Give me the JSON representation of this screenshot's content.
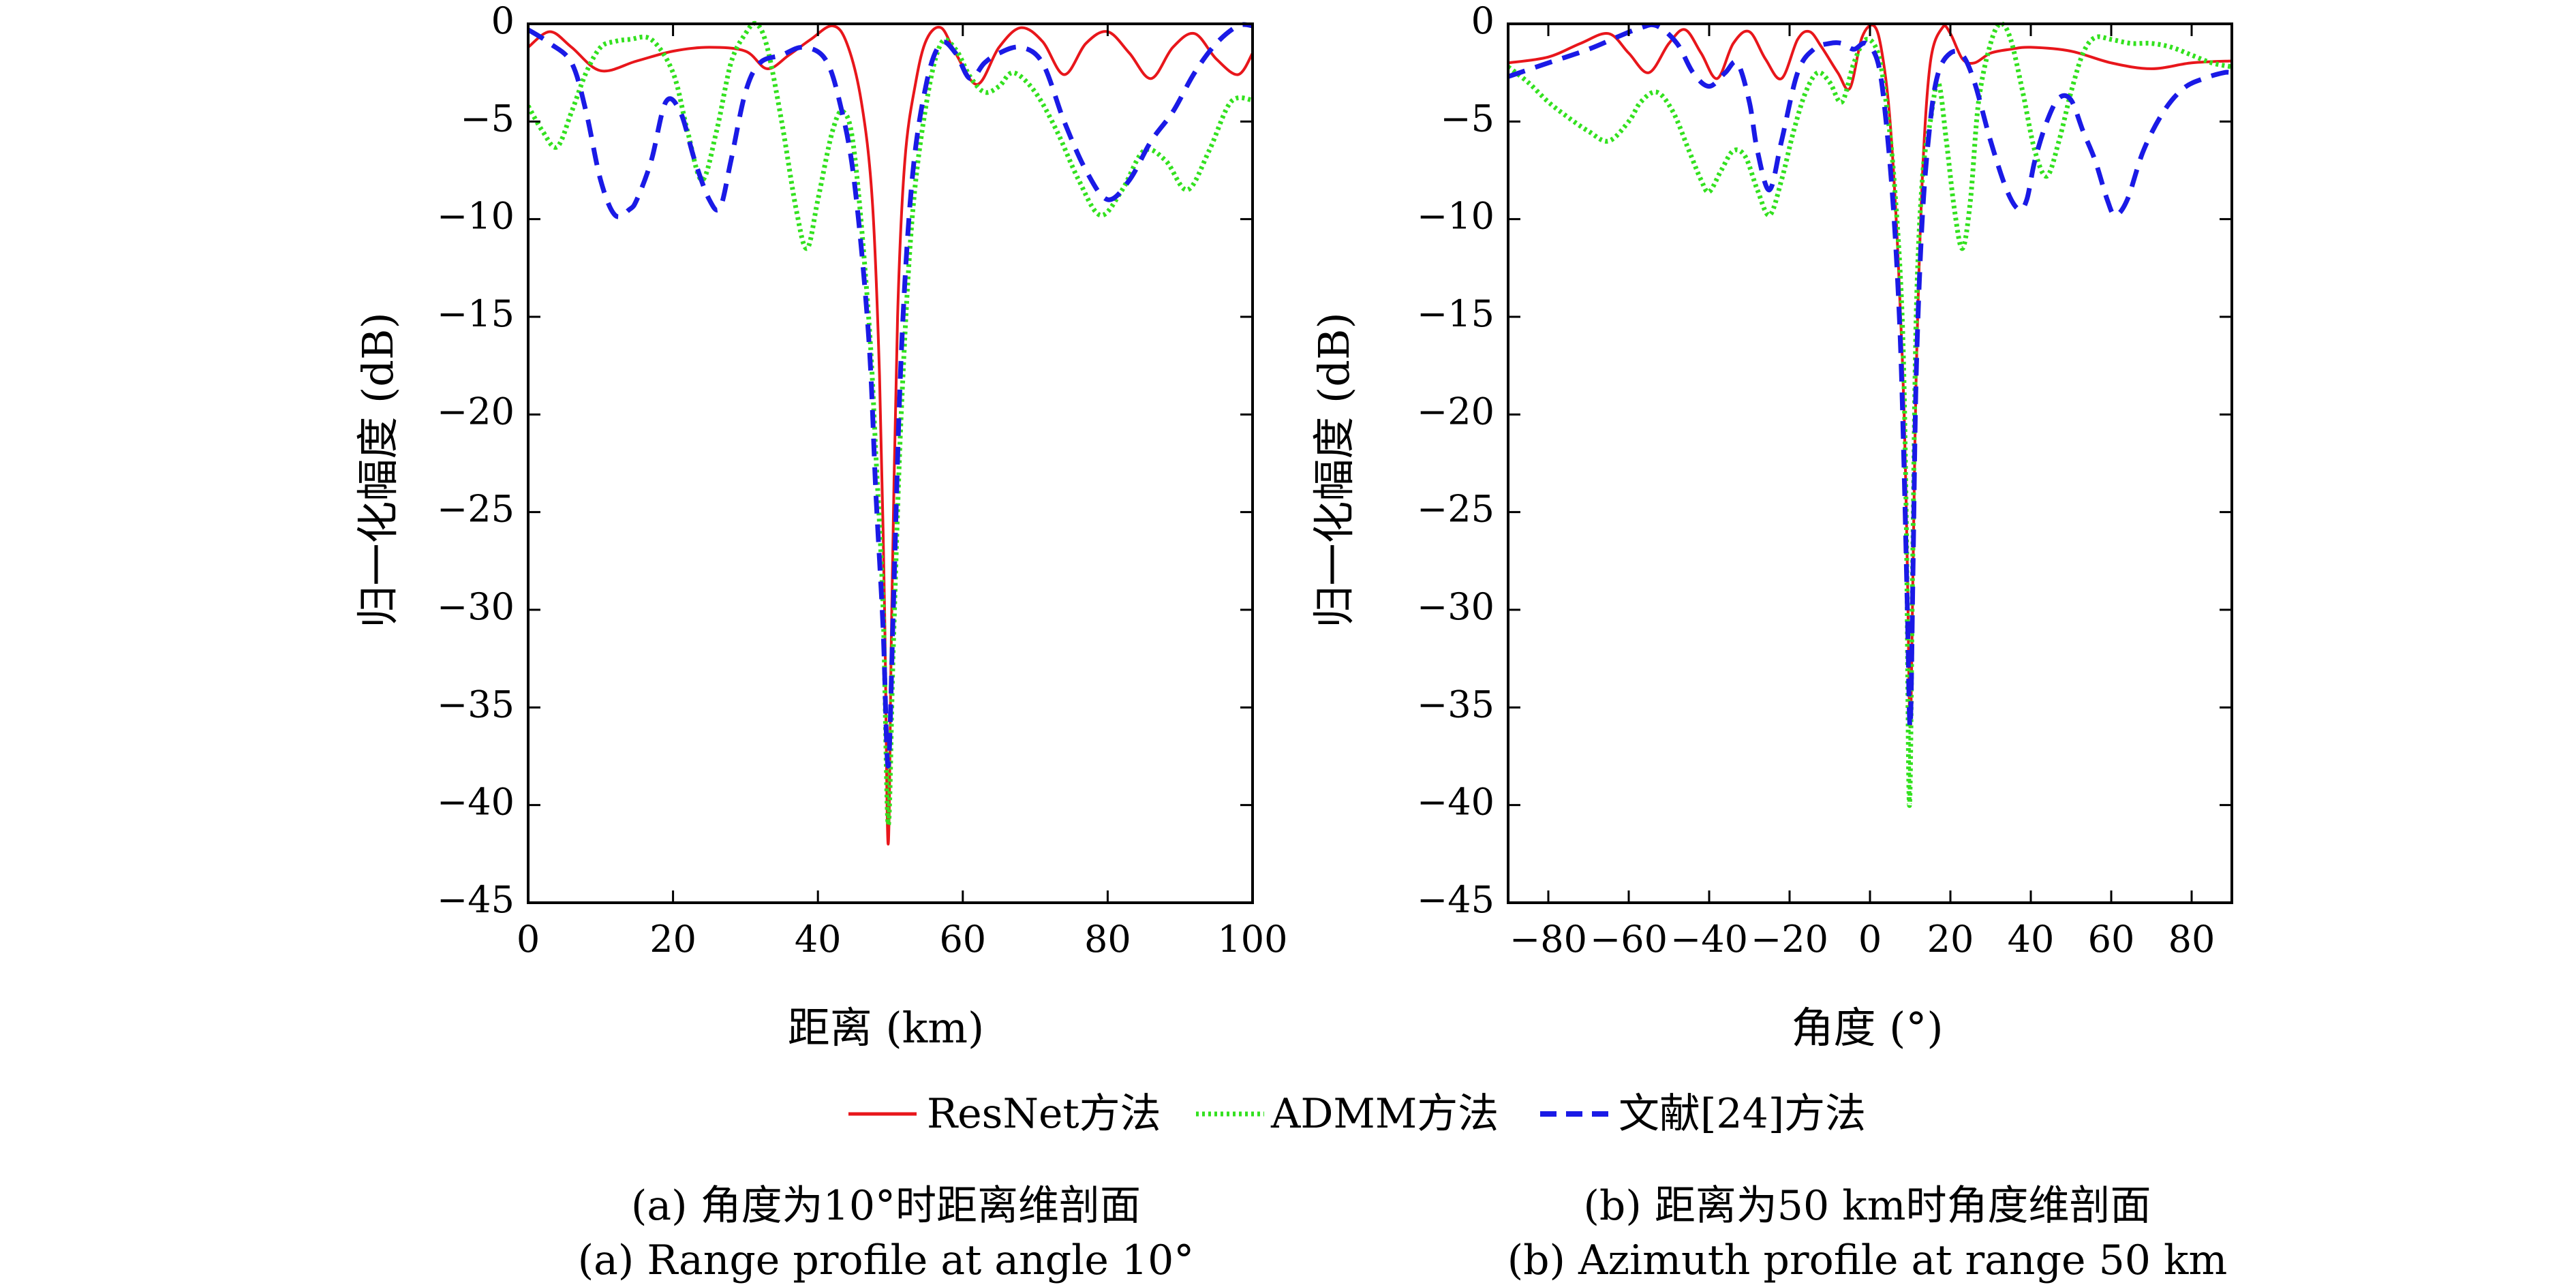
{
  "colors": {
    "resnet": "#e8161b",
    "admm": "#33e11f",
    "ref24": "#1a1ae6",
    "axis": "#000000"
  },
  "legend": [
    {
      "label": "ResNet方法",
      "series": "resnet",
      "style": "solid"
    },
    {
      "label": "ADMM方法",
      "series": "admm",
      "style": "dotted"
    },
    {
      "label": "文献[24]方法",
      "series": "ref24",
      "style": "dashed"
    }
  ],
  "captions": {
    "a_cn": "(a) 角度为10°时距离维剖面",
    "a_en": "(a) Range profile at angle 10°",
    "b_cn": "(b) 距离为50 km时角度维剖面",
    "b_en": "(b) Azimuth profile at range 50 km"
  },
  "chart_data": [
    {
      "type": "line",
      "xlabel": "距离 (km)",
      "ylabel": "归一化幅度 (dB)",
      "xlim": [
        0,
        100
      ],
      "ylim": [
        -45,
        0
      ],
      "xticks": [
        0,
        20,
        40,
        60,
        80,
        100
      ],
      "yticks": [
        0,
        -5,
        -10,
        -15,
        -20,
        -25,
        -30,
        -35,
        -40,
        -45
      ],
      "grid": false,
      "series": [
        {
          "name": "ResNet方法",
          "key": "resnet",
          "x": [
            0,
            3,
            6,
            10,
            15,
            20,
            25,
            30,
            33,
            36,
            39,
            42,
            44,
            46,
            47.5,
            48.5,
            49.2,
            49.7,
            50.2,
            51,
            52,
            53.5,
            55,
            57,
            59,
            62,
            65,
            68,
            71,
            74,
            77,
            80,
            83,
            86,
            89,
            92,
            95,
            98,
            100
          ],
          "y": [
            -1.2,
            -0.4,
            -1.2,
            -2.4,
            -1.9,
            -1.4,
            -1.2,
            -1.4,
            -2.3,
            -1.6,
            -0.8,
            -0.1,
            -1.0,
            -4.0,
            -9.0,
            -18.0,
            -30.0,
            -42.0,
            -30.0,
            -15.0,
            -7.0,
            -3.0,
            -0.8,
            -0.2,
            -1.5,
            -3.1,
            -1.2,
            -0.2,
            -0.9,
            -2.6,
            -1.0,
            -0.4,
            -1.5,
            -2.8,
            -1.2,
            -0.5,
            -1.8,
            -2.6,
            -1.5
          ]
        },
        {
          "name": "ADMM方法",
          "key": "admm",
          "x": [
            0,
            2,
            4,
            6,
            8,
            10,
            12,
            14,
            17,
            20,
            22,
            24,
            26,
            28,
            30,
            31.5,
            33,
            35,
            37,
            38.5,
            40,
            42,
            43.5,
            45,
            47,
            48,
            49,
            49.7,
            50.4,
            51.5,
            53,
            55,
            57,
            59,
            61,
            63,
            65,
            67,
            70,
            73,
            76,
            79,
            82,
            85,
            88,
            91,
            94,
            97,
            100
          ],
          "y": [
            -4.2,
            -5.5,
            -6.3,
            -4.5,
            -2.5,
            -1.2,
            -0.9,
            -0.8,
            -0.8,
            -2.5,
            -5.5,
            -8.0,
            -5.5,
            -2.0,
            -0.5,
            0,
            -1.2,
            -5.0,
            -9.5,
            -11.5,
            -9.0,
            -5.5,
            -4.5,
            -6.5,
            -15.0,
            -22.0,
            -30.0,
            -41.0,
            -32.0,
            -20.0,
            -10.0,
            -4.0,
            -1.0,
            -1.3,
            -2.7,
            -3.5,
            -3.2,
            -2.5,
            -3.5,
            -5.5,
            -8.0,
            -9.8,
            -8.5,
            -6.5,
            -7.0,
            -8.5,
            -6.5,
            -4.0,
            -3.9
          ]
        },
        {
          "name": "文献[24]方法",
          "key": "ref24",
          "x": [
            0,
            3,
            6,
            8,
            10,
            12,
            14,
            15,
            17,
            19,
            21,
            23,
            25,
            26.5,
            28,
            30,
            32,
            35,
            38,
            41,
            43,
            45,
            47,
            48,
            49,
            49.7,
            50.4,
            51.5,
            53,
            55,
            57,
            59,
            61,
            63,
            65,
            68,
            71,
            74,
            77,
            80,
            83,
            86,
            89,
            92,
            95,
            98,
            100
          ],
          "y": [
            -0.3,
            -1.0,
            -2.0,
            -4.5,
            -8.0,
            -9.8,
            -9.5,
            -9.0,
            -7.0,
            -4.0,
            -4.5,
            -7.0,
            -9.0,
            -9.4,
            -7.0,
            -3.5,
            -2.0,
            -1.6,
            -1.2,
            -1.8,
            -4.0,
            -8.0,
            -16.0,
            -24.0,
            -31.0,
            -38.0,
            -30.0,
            -17.0,
            -8.0,
            -3.0,
            -1.0,
            -1.5,
            -2.8,
            -2.0,
            -1.5,
            -1.2,
            -2.0,
            -5.0,
            -7.5,
            -9.0,
            -8.0,
            -6.0,
            -4.5,
            -2.5,
            -1.0,
            -0.1,
            -0.1
          ]
        }
      ]
    },
    {
      "type": "line",
      "xlabel": "角度 (°)",
      "ylabel": "归一化幅度 (dB)",
      "xlim": [
        -90,
        90
      ],
      "ylim": [
        -45,
        0
      ],
      "xticks": [
        -80,
        -60,
        -40,
        -20,
        0,
        20,
        40,
        60,
        80
      ],
      "yticks": [
        0,
        -5,
        -10,
        -15,
        -20,
        -25,
        -30,
        -35,
        -40,
        -45
      ],
      "grid": false,
      "series": [
        {
          "name": "ResNet方法",
          "key": "resnet",
          "x": [
            -90,
            -80,
            -72,
            -65,
            -60,
            -55,
            -50,
            -46,
            -42,
            -38,
            -34,
            -30,
            -26,
            -22,
            -18,
            -15,
            -12,
            -8,
            -5,
            -2,
            1,
            3,
            5,
            7,
            8.5,
            9.3,
            10,
            10.7,
            11.5,
            13,
            15,
            18,
            20,
            23,
            26,
            30,
            35,
            40,
            50,
            60,
            70,
            80,
            90
          ],
          "y": [
            -2.0,
            -1.7,
            -1.0,
            -0.5,
            -1.5,
            -2.5,
            -1.0,
            -0.3,
            -1.5,
            -2.8,
            -1.0,
            -0.4,
            -1.8,
            -2.8,
            -0.8,
            -0.4,
            -1.2,
            -2.5,
            -3.3,
            -0.7,
            -0.1,
            -1.5,
            -5.0,
            -12.0,
            -20.0,
            -28.0,
            -36.0,
            -28.0,
            -18.0,
            -8.0,
            -2.0,
            -0.2,
            -0.5,
            -1.8,
            -2.0,
            -1.5,
            -1.3,
            -1.2,
            -1.4,
            -2.0,
            -2.3,
            -2.0,
            -1.9
          ]
        },
        {
          "name": "ADMM方法",
          "key": "admm",
          "x": [
            -90,
            -85,
            -80,
            -75,
            -70,
            -65,
            -60,
            -57,
            -53,
            -49,
            -45,
            -42,
            -40,
            -37,
            -34,
            -31,
            -28,
            -25,
            -22,
            -19,
            -16,
            -13,
            -10,
            -7,
            -4,
            -1,
            2,
            4,
            6,
            8,
            9,
            9.8,
            10.6,
            11.5,
            13,
            15,
            17,
            19,
            21,
            23,
            25,
            27,
            30,
            32.5,
            35,
            38,
            41,
            44,
            47,
            50,
            53,
            56,
            60,
            65,
            70,
            75,
            80,
            85,
            90
          ],
          "y": [
            -2.2,
            -3.0,
            -4.0,
            -4.8,
            -5.5,
            -6.0,
            -5.0,
            -4.0,
            -3.5,
            -4.5,
            -6.5,
            -8.0,
            -8.6,
            -7.5,
            -6.5,
            -6.8,
            -8.5,
            -9.8,
            -8.0,
            -5.5,
            -3.5,
            -2.5,
            -3.0,
            -4.0,
            -2.0,
            -0.8,
            -1.5,
            -4.0,
            -8.0,
            -15.0,
            -25.0,
            -40.0,
            -28.0,
            -15.0,
            -8.0,
            -5.0,
            -3.0,
            -6.0,
            -9.5,
            -11.5,
            -9.0,
            -4.0,
            -1.0,
            0,
            -0.8,
            -3.5,
            -6.5,
            -7.8,
            -6.0,
            -3.5,
            -1.5,
            -0.7,
            -0.8,
            -1.0,
            -1.0,
            -1.2,
            -1.6,
            -2.0,
            -2.2
          ]
        },
        {
          "name": "文献[24]方法",
          "key": "ref24",
          "x": [
            -90,
            -80,
            -70,
            -62,
            -57,
            -53,
            -48,
            -44,
            -40,
            -36,
            -33,
            -30,
            -28,
            -25,
            -22,
            -18,
            -14,
            -10,
            -7,
            -4,
            -1,
            2,
            4,
            6,
            7.5,
            8.5,
            9.3,
            10,
            10.7,
            11.5,
            13,
            15,
            17,
            20,
            23,
            26,
            30,
            34,
            37,
            39,
            41,
            44,
            47,
            50,
            53,
            56,
            59,
            61,
            64,
            68,
            73,
            78,
            83,
            88,
            90
          ],
          "y": [
            -2.7,
            -2.0,
            -1.3,
            -0.6,
            -0.2,
            -0.1,
            -1.0,
            -2.5,
            -3.2,
            -2.5,
            -2.0,
            -4.0,
            -6.5,
            -8.5,
            -6.0,
            -2.5,
            -1.3,
            -1.0,
            -1.0,
            -1.3,
            -1.0,
            -2.0,
            -5.0,
            -10.0,
            -16.0,
            -23.0,
            -30.0,
            -36.0,
            -28.0,
            -18.0,
            -10.0,
            -5.0,
            -2.5,
            -1.5,
            -1.6,
            -3.0,
            -6.0,
            -8.5,
            -9.5,
            -9.0,
            -7.0,
            -5.0,
            -3.8,
            -3.9,
            -5.5,
            -7.0,
            -9.0,
            -9.8,
            -9.0,
            -6.5,
            -4.5,
            -3.3,
            -2.8,
            -2.5,
            -2.5
          ]
        }
      ]
    }
  ]
}
